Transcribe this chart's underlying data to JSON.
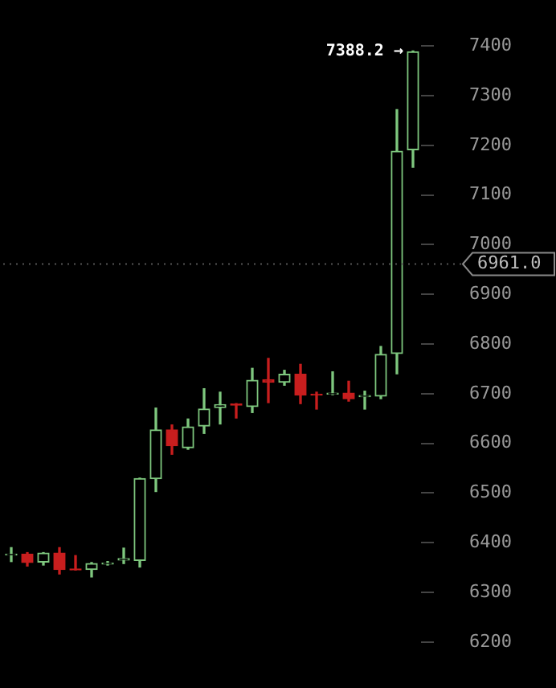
{
  "chart_data": {
    "type": "candlestick",
    "categories": [
      null,
      null,
      null,
      null,
      null,
      null,
      null,
      null,
      null,
      null,
      null,
      null,
      null,
      null,
      null,
      null,
      null,
      null,
      null,
      null,
      null,
      null,
      null,
      null,
      null,
      null
    ],
    "ohlc": [
      [
        6375,
        6390,
        6362,
        6377
      ],
      [
        6377,
        6380,
        6353,
        6360
      ],
      [
        6361,
        6380,
        6355,
        6379
      ],
      [
        6379,
        6390,
        6337,
        6346
      ],
      [
        6347,
        6374,
        6345,
        6345
      ],
      [
        6346,
        6360,
        6331,
        6358
      ],
      [
        6357,
        6362,
        6355,
        6359
      ],
      [
        6365,
        6389,
        6358,
        6368
      ],
      [
        6364,
        6530,
        6351,
        6529
      ],
      [
        6529,
        6671,
        6503,
        6627
      ],
      [
        6627,
        6637,
        6578,
        6595
      ],
      [
        6591,
        6649,
        6588,
        6633
      ],
      [
        6635,
        6710,
        6620,
        6669
      ],
      [
        6672,
        6703,
        6639,
        6678
      ],
      [
        6679,
        6680,
        6651,
        6677
      ],
      [
        6674,
        6751,
        6662,
        6727
      ],
      [
        6728,
        6771,
        6682,
        6723
      ],
      [
        6723,
        6747,
        6717,
        6739
      ],
      [
        6739,
        6759,
        6680,
        6697
      ],
      [
        6699,
        6703,
        6669,
        6697
      ],
      [
        6699,
        6744,
        6698,
        6701
      ],
      [
        6701,
        6725,
        6685,
        6690
      ],
      [
        6694,
        6705,
        6669,
        6696
      ],
      [
        6695,
        6795,
        6690,
        6779
      ],
      [
        6781,
        7272,
        6740,
        7188
      ],
      [
        7191,
        7390,
        7156,
        7388.2
      ]
    ],
    "colors": [
      "#7ec77e",
      "#c81e1e",
      "#7ec77e",
      "#c81e1e",
      "#c81e1e",
      "#7ec77e",
      "#7ec77e",
      "#7ec77e",
      "#7ec77e",
      "#7ec77e",
      "#c81e1e",
      "#7ec77e",
      "#7ec77e",
      "#7ec77e",
      "#c81e1e",
      "#7ec77e",
      "#c81e1e",
      "#7ec77e",
      "#c81e1e",
      "#c81e1e",
      "#7ec77e",
      "#c81e1e",
      "#7ec77e",
      "#7ec77e",
      "#7ec77e",
      "#7ec77e"
    ],
    "ylim": [
      6200,
      7400
    ],
    "yticks": [
      6200,
      6300,
      6400,
      6500,
      6600,
      6700,
      6800,
      6900,
      7000,
      7100,
      7200,
      7300,
      7400
    ],
    "tick_labels": "y",
    "grid": false,
    "annotations": [
      "7388.2 →"
    ],
    "ref_lines": [
      {
        "axis": "y",
        "value": 6961,
        "label": "6961.0"
      }
    ]
  }
}
